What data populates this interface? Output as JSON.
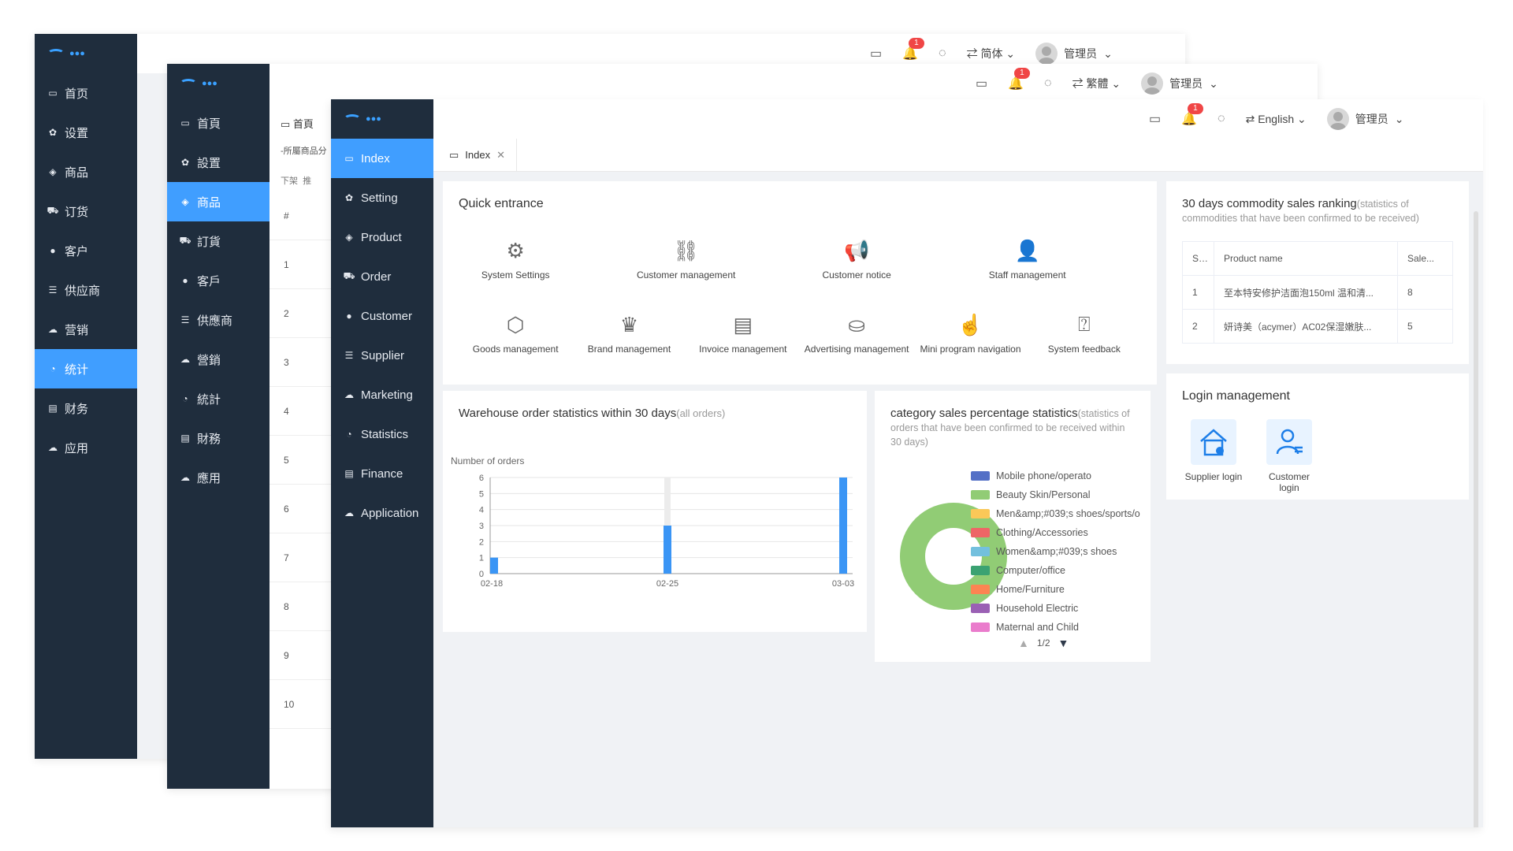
{
  "windows": {
    "simplified": {
      "nav": [
        "首页",
        "设置",
        "商品",
        "订货",
        "客户",
        "供应商",
        "营销",
        "统计",
        "财务",
        "应用"
      ],
      "lang": "简体",
      "user": "管理员",
      "badge": "1"
    },
    "traditional": {
      "nav": [
        "首頁",
        "設置",
        "商品",
        "訂貨",
        "客戶",
        "供應商",
        "營銷",
        "統計",
        "財務",
        "應用"
      ],
      "lang": "繁體",
      "user": "管理员",
      "badge": "1",
      "tab": "首頁",
      "filter_placeholder": "-所屬商品分",
      "sub_tabs": [
        "下架",
        "推"
      ],
      "row_numbers": [
        "#",
        "1",
        "2",
        "3",
        "4",
        "5",
        "6",
        "7",
        "8",
        "9",
        "10"
      ]
    },
    "english": {
      "nav": [
        "Index",
        "Setting",
        "Product",
        "Order",
        "Customer",
        "Supplier",
        "Marketing",
        "Statistics",
        "Finance",
        "Application"
      ],
      "lang": "English",
      "user": "管理员",
      "badge": "1",
      "tab": "Index"
    }
  },
  "quick_entrance": {
    "title": "Quick entrance",
    "items": [
      {
        "label": "System Settings",
        "icon": "gear-icon"
      },
      {
        "label": "Customer management",
        "icon": "org-chart-icon"
      },
      {
        "label": "Customer notice",
        "icon": "megaphone-icon"
      },
      {
        "label": "Staff management",
        "icon": "person-icon"
      },
      {
        "label": "Goods management",
        "icon": "cube-icon"
      },
      {
        "label": "Brand management",
        "icon": "crown-icon"
      },
      {
        "label": "Invoice management",
        "icon": "invoice-icon"
      },
      {
        "label": "Advertising management",
        "icon": "ad-icon"
      },
      {
        "label": "Mini program navigation",
        "icon": "pointer-icon"
      },
      {
        "label": "System feedback",
        "icon": "feedback-icon"
      }
    ]
  },
  "ranking": {
    "title": "30 days commodity sales ranking",
    "subtitle": "(statistics of commodities that have been confirmed to be received)",
    "headers": [
      "Seri...",
      "Product name",
      "Sale..."
    ],
    "rows": [
      [
        "1",
        "至本特安修护洁面泡150ml 温和清...",
        "8"
      ],
      [
        "2",
        "妍诗美（acymer）AC02保湿嫩肤...",
        "5"
      ]
    ]
  },
  "login_management": {
    "title": "Login management",
    "items": [
      {
        "label": "Supplier login",
        "icon": "supplier-house-icon"
      },
      {
        "label": "Customer login",
        "icon": "customer-person-icon"
      }
    ]
  },
  "warehouse": {
    "title": "Warehouse order statistics within 30 days",
    "subtitle": "(all orders)"
  },
  "category": {
    "title": "category sales percentage statistics",
    "subtitle": "(statistics of orders that have been confirmed to be received within 30 days)",
    "pager": "1/2"
  },
  "chart_data": [
    {
      "type": "bar",
      "title": "",
      "ylabel": "Number of orders",
      "x_tick_labels": [
        "02-18",
        "02-25",
        "03-03"
      ],
      "x": [
        "02-18",
        "02-25",
        "03-03"
      ],
      "values": [
        1,
        3,
        6
      ],
      "y_ticks": [
        "0",
        "1",
        "2",
        "3",
        "4",
        "5",
        "6"
      ],
      "ylim": [
        0,
        6
      ],
      "color": "#3a95f5",
      "grid": true
    },
    {
      "type": "pie",
      "variant": "donut",
      "legend": [
        {
          "name": "Mobile phone/operato",
          "color": "#5470c6"
        },
        {
          "name": "Beauty Skin/Personal",
          "color": "#91cc75"
        },
        {
          "name": "Men&amp;#039;s shoes/sports/o",
          "color": "#fac858"
        },
        {
          "name": "Clothing/Accessories",
          "color": "#ee6666"
        },
        {
          "name": "Women&amp;#039;s shoes",
          "color": "#73c0de"
        },
        {
          "name": "Computer/office",
          "color": "#3ba272"
        },
        {
          "name": "Home/Furniture",
          "color": "#fc8452"
        },
        {
          "name": "Household Electric",
          "color": "#9a60b4"
        },
        {
          "name": "Maternal and Child",
          "color": "#ea7ccc"
        }
      ],
      "slices": [
        {
          "name": "Beauty Skin/Personal",
          "value": 100
        }
      ]
    }
  ]
}
